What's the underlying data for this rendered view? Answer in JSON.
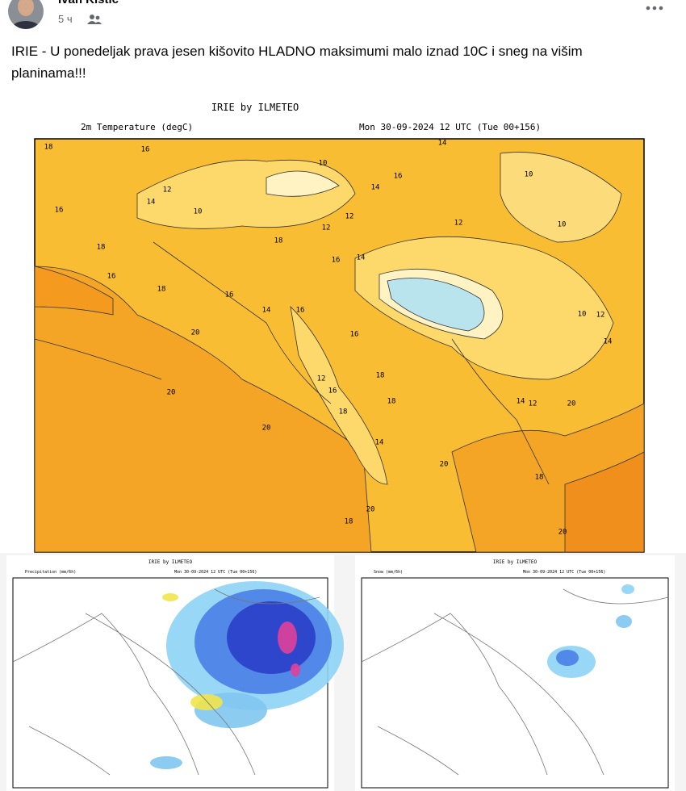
{
  "post": {
    "author": "Ivan Kistić",
    "time": "5 ч",
    "text": "IRIE - U ponedeljak prava jesen kišovito HLADNO maksimumi malo iznad 10C i sneg na višim planinama!!!"
  },
  "main_map": {
    "title": "IRIE by ILMETEO",
    "variable": "2m Temperature (degC)",
    "valid": "Mon 30-09-2024 12 UTC (Tue 00+156)",
    "contour_labels": [
      "18",
      "16",
      "14",
      "10",
      "16",
      "14",
      "12",
      "14",
      "10",
      "12",
      "10",
      "16",
      "12",
      "12",
      "18",
      "18",
      "10",
      "16",
      "14",
      "16",
      "18",
      "16",
      "14",
      "16",
      "12",
      "14",
      "10",
      "16",
      "20",
      "12",
      "18",
      "16",
      "20",
      "18",
      "14",
      "12",
      "18",
      "20",
      "20",
      "14",
      "20",
      "18",
      "20",
      "18",
      "20"
    ]
  },
  "precip_map": {
    "title": "IRIE by ILMETEO",
    "variable": "Precipitation (mm/6h)",
    "valid": "Mon 30-09-2024 12 UTC (Tue 00+156)"
  },
  "snow_map": {
    "title": "IRIE by ILMETEO",
    "variable": "Snow (mm/6h)",
    "valid": "Mon 30-09-2024 12 UTC (Tue 00+156)"
  }
}
